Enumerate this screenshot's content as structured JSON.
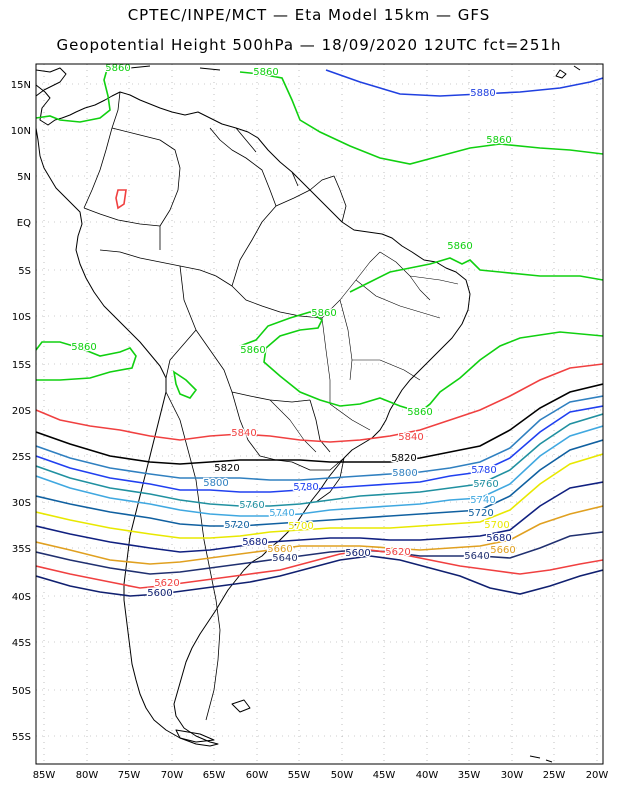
{
  "title_line1": "CPTEC/INPE/MCT —  Eta Model 15km — GFS",
  "title_line2": "Geopotential Height 500hPa — 18/09/2020 12UTC fct=251h",
  "lat_labels": [
    "15N",
    "10N",
    "5N",
    "EQ",
    "5S",
    "10S",
    "15S",
    "20S",
    "25S",
    "30S",
    "35S",
    "40S",
    "45S",
    "50S",
    "55S"
  ],
  "lon_labels": [
    "85W",
    "80W",
    "75W",
    "70W",
    "65W",
    "60W",
    "55W",
    "50W",
    "45W",
    "40W",
    "35W",
    "30W",
    "25W",
    "20W"
  ],
  "contour_levels": [
    {
      "value": "5880",
      "color": "#2040e0"
    },
    {
      "value": "5860",
      "color": "#10d010"
    },
    {
      "value": "5840",
      "color": "#f04040"
    },
    {
      "value": "5820",
      "color": "#000000"
    },
    {
      "value": "5800",
      "color": "#3080c0"
    },
    {
      "value": "5780",
      "color": "#2040f0"
    },
    {
      "value": "5760",
      "color": "#2090a0"
    },
    {
      "value": "5740",
      "color": "#40a8e0"
    },
    {
      "value": "5720",
      "color": "#1060a0"
    },
    {
      "value": "5700",
      "color": "#e8e800"
    },
    {
      "value": "5680",
      "color": "#102080"
    },
    {
      "value": "5660",
      "color": "#e0a020"
    },
    {
      "value": "5640",
      "color": "#203070"
    },
    {
      "value": "5620",
      "color": "#f04040"
    },
    {
      "value": "5600",
      "color": "#102070"
    }
  ],
  "contour_labels": [
    {
      "text": "5860",
      "color": "#10d010"
    },
    {
      "text": "5860",
      "color": "#10d010"
    },
    {
      "text": "5880",
      "color": "#2040e0"
    },
    {
      "text": "5860",
      "color": "#10d010"
    },
    {
      "text": "5860",
      "color": "#10d010"
    },
    {
      "text": "5860",
      "color": "#10d010"
    },
    {
      "text": "5860",
      "color": "#10d010"
    },
    {
      "text": "5860",
      "color": "#10d010"
    },
    {
      "text": "5860",
      "color": "#10d010"
    },
    {
      "text": "5840",
      "color": "#f04040"
    },
    {
      "text": "5840",
      "color": "#f04040"
    },
    {
      "text": "5820",
      "color": "#000000"
    },
    {
      "text": "5820",
      "color": "#000000"
    },
    {
      "text": "5800",
      "color": "#3080c0"
    },
    {
      "text": "5800",
      "color": "#3080c0"
    },
    {
      "text": "5780",
      "color": "#2040f0"
    },
    {
      "text": "5780",
      "color": "#2040f0"
    },
    {
      "text": "5760",
      "color": "#2090a0"
    },
    {
      "text": "5760",
      "color": "#2090a0"
    },
    {
      "text": "5740",
      "color": "#40a8e0"
    },
    {
      "text": "5740",
      "color": "#40a8e0"
    },
    {
      "text": "5720",
      "color": "#1060a0"
    },
    {
      "text": "5720",
      "color": "#1060a0"
    },
    {
      "text": "5700",
      "color": "#e8e800"
    },
    {
      "text": "5700",
      "color": "#e8e800"
    },
    {
      "text": "5680",
      "color": "#102080"
    },
    {
      "text": "5680",
      "color": "#102080"
    },
    {
      "text": "5660",
      "color": "#e0a020"
    },
    {
      "text": "5660",
      "color": "#e0a020"
    },
    {
      "text": "5640",
      "color": "#203070"
    },
    {
      "text": "5640",
      "color": "#203070"
    },
    {
      "text": "5620",
      "color": "#f04040"
    },
    {
      "text": "5620",
      "color": "#f04040"
    },
    {
      "text": "5600",
      "color": "#102070"
    },
    {
      "text": "5600",
      "color": "#102070"
    }
  ]
}
